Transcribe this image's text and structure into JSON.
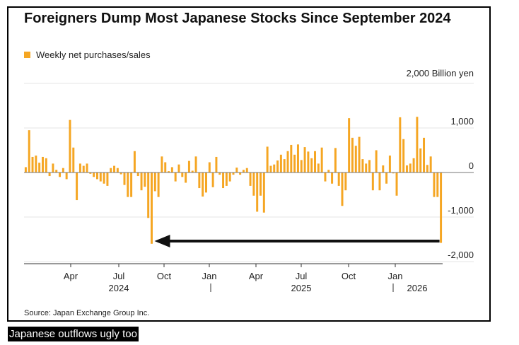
{
  "title": "Foreigners Dump Most Japanese Stocks Since September 2024",
  "legend_label": "Weekly net purchases/sales",
  "source": "Source: Japan Exchange Group Inc.",
  "caption": "Japanese outflows ugly too",
  "colors": {
    "bar": "#f5a623",
    "arrow": "#111111",
    "grid": "#e5e5e5",
    "zero": "#777777"
  },
  "chart_data": {
    "type": "bar",
    "unit_label": "2,000 Billion yen",
    "y_ticks": [
      {
        "value": 1000,
        "label": "1,000"
      },
      {
        "value": 0,
        "label": "0"
      },
      {
        "value": -1000,
        "label": "-1,000"
      },
      {
        "value": -2000,
        "label": "-2,000"
      }
    ],
    "ylim": [
      -2100,
      2000
    ],
    "x_month_ticks": [
      "Apr",
      "Jul",
      "Oct",
      "Jan",
      "Apr",
      "Jul",
      "Oct",
      "Jan"
    ],
    "x_year_labels": [
      "2024",
      "2025",
      "2026"
    ],
    "values": [
      120,
      950,
      350,
      380,
      220,
      350,
      320,
      -80,
      200,
      60,
      -100,
      100,
      -150,
      1180,
      560,
      -620,
      200,
      150,
      200,
      -30,
      -100,
      -150,
      -200,
      -250,
      -300,
      100,
      150,
      100,
      -40,
      -280,
      -550,
      -550,
      480,
      -80,
      -400,
      -320,
      -1020,
      -1600,
      -420,
      -550,
      360,
      230,
      30,
      120,
      -200,
      180,
      -100,
      -230,
      260,
      40,
      360,
      -350,
      -540,
      -450,
      230,
      -330,
      350,
      -50,
      -350,
      -300,
      -200,
      -50,
      110,
      -50,
      60,
      100,
      -300,
      -520,
      -880,
      -520,
      -900,
      580,
      150,
      180,
      270,
      400,
      300,
      480,
      620,
      400,
      630,
      280,
      570,
      470,
      320,
      480,
      200,
      560,
      -200,
      60,
      -250,
      550,
      -300,
      -750,
      -400,
      1220,
      780,
      600,
      800,
      300,
      200,
      280,
      -400,
      500,
      -400,
      160,
      -250,
      380,
      -20,
      -520,
      1240,
      750,
      160,
      200,
      320,
      1250,
      540,
      780,
      170,
      360,
      -550,
      -550,
      -1580
    ],
    "annotation": "arrow from latest week pointing back to September 2024 low"
  }
}
